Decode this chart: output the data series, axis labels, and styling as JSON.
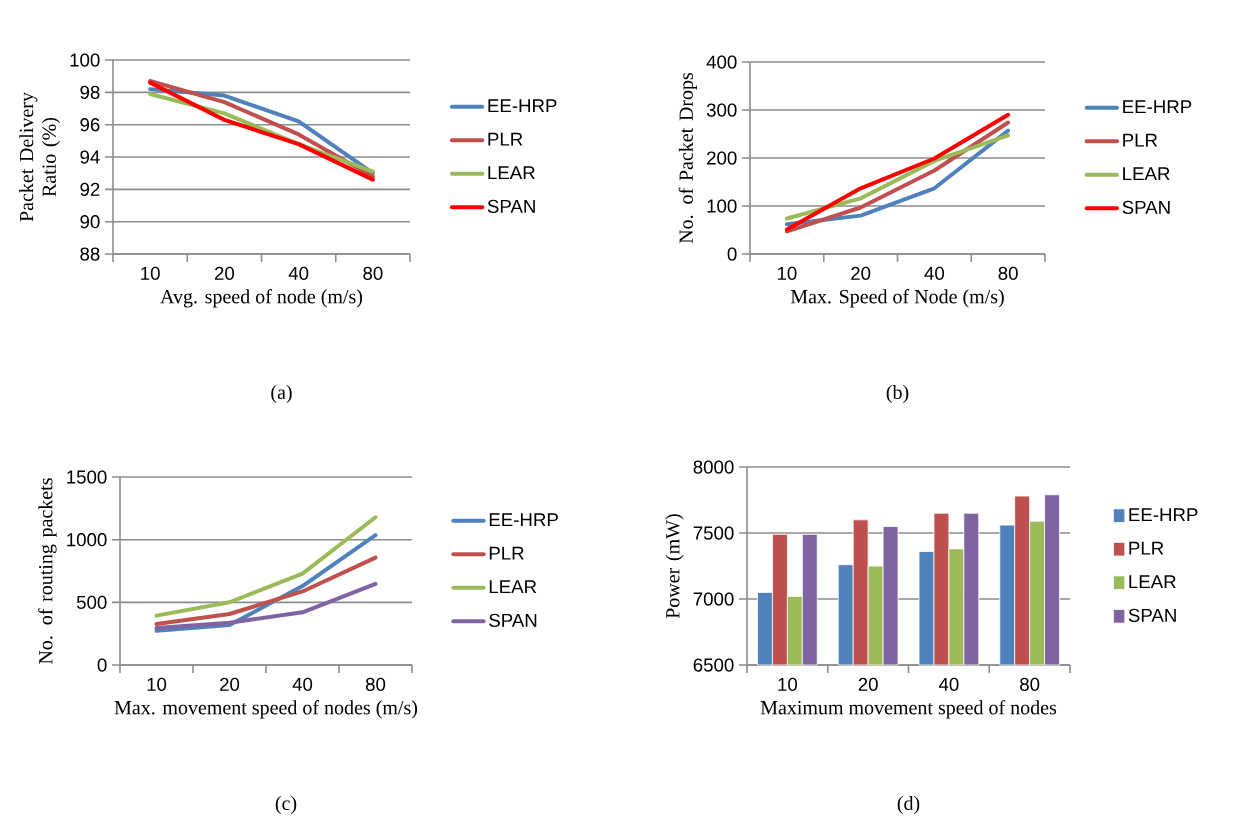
{
  "chart_data": [
    {
      "type": "line",
      "xlabel": "Avg. speed of node (m/s)",
      "ylabel": "Packet Delivery Ratio (%)",
      "categories": [
        "10",
        "20",
        "40",
        "80"
      ],
      "ylim": [
        88,
        100
      ],
      "yticks": [
        88,
        90,
        92,
        94,
        96,
        98,
        100
      ],
      "grid": "y",
      "legend": "right",
      "annotations": [
        "(a)"
      ],
      "series": [
        {
          "name": "EE-HRP",
          "color": "#4f81bd",
          "values": [
            98.2,
            97.8,
            96.2,
            93.0
          ]
        },
        {
          "name": "PLR",
          "color": "#c0504d",
          "values": [
            98.7,
            97.4,
            95.4,
            92.8
          ]
        },
        {
          "name": "LEAR",
          "color": "#9bbb59",
          "values": [
            97.9,
            96.7,
            94.8,
            93.1
          ]
        },
        {
          "name": "SPAN",
          "color": "#ff0000",
          "values": [
            98.6,
            96.3,
            94.8,
            92.6
          ]
        }
      ]
    },
    {
      "type": "line",
      "xlabel": "Max. Speed of Node (m/s)",
      "ylabel": "No. of Packet Drops",
      "categories": [
        "10",
        "20",
        "40",
        "80"
      ],
      "ylim": [
        0,
        400
      ],
      "yticks": [
        0,
        100,
        200,
        300,
        400
      ],
      "grid": "y",
      "legend": "right",
      "annotations": [
        "(b)"
      ],
      "series": [
        {
          "name": "EE-HRP",
          "color": "#4f81bd",
          "values": [
            62,
            80,
            137,
            257
          ]
        },
        {
          "name": "PLR",
          "color": "#c0504d",
          "values": [
            47,
            97,
            174,
            274
          ]
        },
        {
          "name": "LEAR",
          "color": "#9bbb59",
          "values": [
            74,
            116,
            194,
            247
          ]
        },
        {
          "name": "SPAN",
          "color": "#ff0000",
          "values": [
            51,
            137,
            199,
            290
          ]
        }
      ]
    },
    {
      "type": "line",
      "xlabel": "Max. movement speed of nodes (m/s)",
      "ylabel": "No. of routing packets",
      "categories": [
        "10",
        "20",
        "40",
        "80"
      ],
      "ylim": [
        0,
        1500
      ],
      "yticks": [
        0,
        500,
        1000,
        1500
      ],
      "grid": "y",
      "legend": "right",
      "annotations": [
        "(c)"
      ],
      "series": [
        {
          "name": "EE-HRP",
          "color": "#4f81bd",
          "values": [
            273,
            319,
            630,
            1037
          ]
        },
        {
          "name": "PLR",
          "color": "#c0504d",
          "values": [
            327,
            407,
            587,
            857
          ]
        },
        {
          "name": "LEAR",
          "color": "#9bbb59",
          "values": [
            394,
            501,
            729,
            1179
          ]
        },
        {
          "name": "SPAN",
          "color": "#8064a2",
          "values": [
            295,
            338,
            421,
            648
          ]
        }
      ]
    },
    {
      "type": "bar",
      "xlabel": "Maximum movement speed of nodes",
      "ylabel": "Power (mW)",
      "categories": [
        "10",
        "20",
        "40",
        "80"
      ],
      "ylim": [
        6500,
        8000
      ],
      "yticks": [
        6500,
        7000,
        7500,
        8000
      ],
      "grid": "y",
      "legend": "right",
      "annotations": [
        "(d)"
      ],
      "series": [
        {
          "name": "EE-HRP",
          "color": "#4f81bd",
          "values": [
            7050,
            7260,
            7360,
            7560
          ]
        },
        {
          "name": "PLR",
          "color": "#c0504d",
          "values": [
            7490,
            7600,
            7650,
            7780
          ]
        },
        {
          "name": "LEAR",
          "color": "#9bbb59",
          "values": [
            7020,
            7250,
            7380,
            7590
          ]
        },
        {
          "name": "SPAN",
          "color": "#8064a2",
          "values": [
            7490,
            7550,
            7650,
            7790
          ]
        }
      ]
    }
  ]
}
